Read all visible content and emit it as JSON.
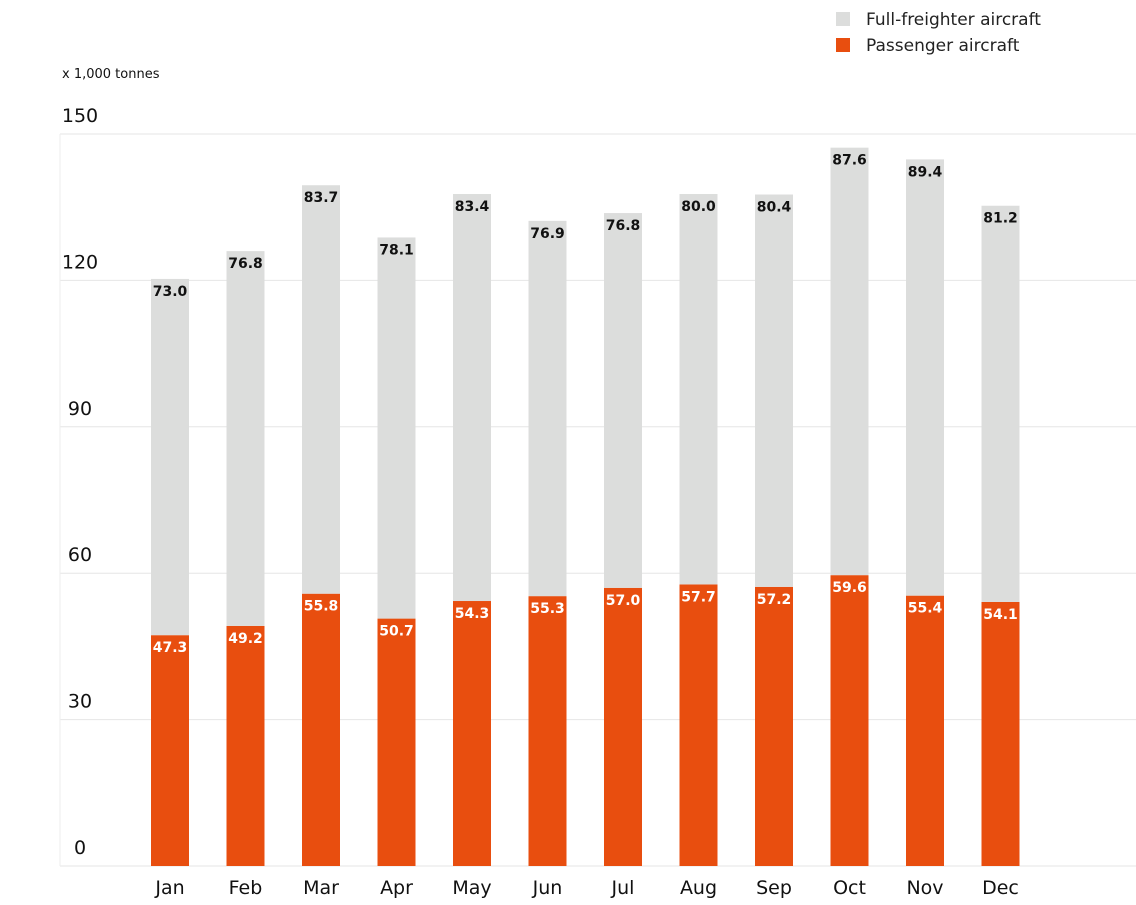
{
  "chart_data": {
    "type": "bar",
    "stacked": true,
    "categories": [
      "Jan",
      "Feb",
      "Mar",
      "Apr",
      "May",
      "Jun",
      "Jul",
      "Aug",
      "Sep",
      "Oct",
      "Nov",
      "Dec"
    ],
    "series": [
      {
        "name": "Passenger aircraft",
        "color": "#e84e0f",
        "values": [
          47.3,
          49.2,
          55.8,
          50.7,
          54.3,
          55.3,
          57.0,
          57.7,
          57.2,
          59.6,
          55.4,
          54.1
        ]
      },
      {
        "name": "Full-freighter aircraft",
        "color": "#dcdddc",
        "values": [
          73.0,
          76.8,
          83.7,
          78.1,
          83.4,
          76.9,
          76.8,
          80.0,
          80.4,
          87.6,
          89.4,
          81.2
        ]
      }
    ],
    "ylabel": "x 1,000 tonnes",
    "ylim": [
      0,
      150
    ],
    "yticks": [
      0,
      30,
      60,
      90,
      120,
      150
    ],
    "grid": true,
    "legend": "top-right"
  }
}
